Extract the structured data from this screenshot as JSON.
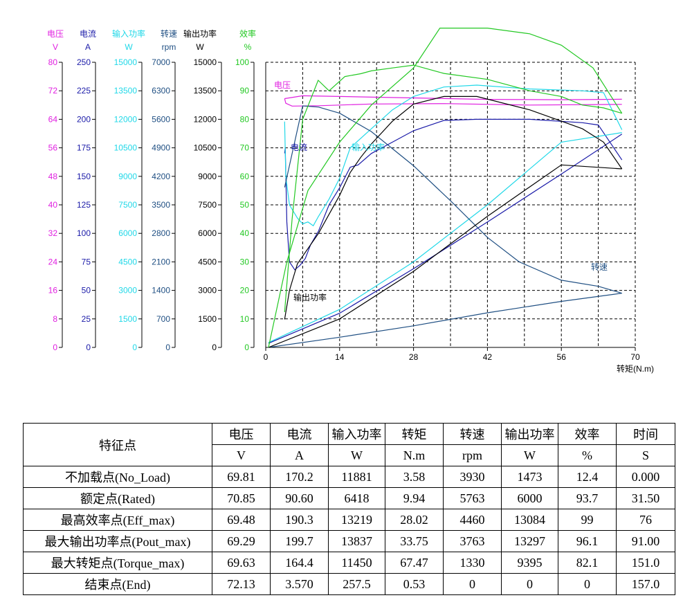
{
  "chart_data": {
    "type": "line",
    "xlabel": "转矩(N.m)",
    "xlim": [
      0,
      70
    ],
    "x_ticks": [
      "0",
      "14",
      "28",
      "42",
      "56",
      "70"
    ],
    "grid": true,
    "axes": [
      {
        "name": "电压",
        "unit": "V",
        "color": "#e020e0",
        "ylim": [
          0,
          80
        ],
        "ticks": [
          "0",
          "8",
          "16",
          "24",
          "32",
          "40",
          "48",
          "56",
          "64",
          "72",
          "80"
        ]
      },
      {
        "name": "电流",
        "unit": "A",
        "color": "#1a1aa8",
        "ylim": [
          0,
          250
        ],
        "ticks": [
          "0",
          "25",
          "50",
          "75",
          "100",
          "125",
          "150",
          "175",
          "200",
          "225",
          "250"
        ]
      },
      {
        "name": "输入功率",
        "unit": "W",
        "color": "#20d8e8",
        "ylim": [
          0,
          15000
        ],
        "ticks": [
          "0",
          "1500",
          "3000",
          "4500",
          "6000",
          "7500",
          "9000",
          "10500",
          "12000",
          "13500",
          "15000"
        ]
      },
      {
        "name": "转速",
        "unit": "rpm",
        "color": "#1e4e82",
        "ylim": [
          0,
          7000
        ],
        "ticks": [
          "0",
          "700",
          "1400",
          "2100",
          "2800",
          "3500",
          "4200",
          "4900",
          "5600",
          "6300",
          "7000"
        ]
      },
      {
        "name": "输出功率",
        "unit": "W",
        "color": "#000000",
        "ylim": [
          0,
          15000
        ],
        "ticks": [
          "0",
          "1500",
          "3000",
          "4500",
          "6000",
          "7500",
          "9000",
          "10500",
          "12000",
          "13500",
          "15000"
        ]
      },
      {
        "name": "效率",
        "unit": "%",
        "color": "#22c822",
        "ylim": [
          0,
          100
        ],
        "ticks": [
          "0",
          "10",
          "20",
          "30",
          "40",
          "50",
          "60",
          "70",
          "80",
          "90",
          "100"
        ]
      }
    ],
    "annotations": [
      "电压",
      "电流",
      "输入功率",
      "转速",
      "输出功率"
    ],
    "series": [
      {
        "name": "电压",
        "axis": 0,
        "color": "#e020e0",
        "x": [
          3.58,
          7,
          14,
          28,
          42,
          56,
          67.47
        ],
        "y": [
          69.81,
          70.6,
          70.4,
          70.0,
          69.6,
          69.5,
          69.63
        ]
      },
      {
        "name": "电压",
        "axis": 0,
        "color": "#e020e0",
        "x": [
          3.58,
          3.8,
          5,
          10,
          20,
          33.75,
          50,
          67.47
        ],
        "y": [
          69.81,
          68.5,
          67.7,
          67.8,
          68.3,
          68.4,
          68.0,
          68.2
        ]
      },
      {
        "name": "电流",
        "axis": 1,
        "color": "#1a1aa8",
        "x": [
          3.58,
          3.7,
          4.0,
          4.5,
          5.5,
          6.5,
          7.5,
          8.5,
          10,
          12,
          14,
          16,
          17.5,
          20,
          24,
          28,
          33.75,
          40,
          50,
          60,
          63,
          67.47
        ],
        "y": [
          170.2,
          175,
          110,
          75,
          68,
          72,
          78,
          90,
          102,
          125,
          140,
          158,
          160,
          170,
          180,
          190,
          199,
          200,
          200,
          197,
          195,
          164.4
        ]
      },
      {
        "name": "电流",
        "axis": 1,
        "color": "#1a1aa8",
        "x": [
          0.53,
          14,
          28,
          42,
          56,
          67.47
        ],
        "y": [
          3.57,
          30,
          69,
          110,
          152,
          187
        ]
      },
      {
        "name": "输入功率",
        "axis": 2,
        "color": "#20d8e8",
        "x": [
          3.58,
          3.8,
          4.5,
          6,
          7,
          8,
          9,
          10,
          12,
          14,
          16,
          20,
          24,
          28,
          33.75,
          40,
          50,
          60,
          64,
          67.47
        ],
        "y": [
          11881,
          9000,
          7500,
          6800,
          6500,
          6600,
          6400,
          6900,
          7800,
          8900,
          10500,
          11500,
          12500,
          13200,
          13700,
          13800,
          13600,
          13500,
          13400,
          11450
        ]
      },
      {
        "name": "输入功率",
        "axis": 2,
        "color": "#20d8e8",
        "x": [
          0.53,
          14,
          28,
          42,
          56,
          67.47
        ],
        "y": [
          257,
          2000,
          4500,
          7500,
          10800,
          11300
        ]
      },
      {
        "name": "转速",
        "axis": 3,
        "color": "#1e4e82",
        "x": [
          3.58,
          7,
          10,
          14,
          20,
          28,
          35,
          42,
          48,
          56,
          63,
          67.47
        ],
        "y": [
          3930,
          5930,
          5900,
          5750,
          5300,
          4460,
          3600,
          2700,
          2100,
          1650,
          1500,
          1330
        ]
      },
      {
        "name": "转速",
        "axis": 3,
        "color": "#1e4e82",
        "x": [
          0.53,
          14,
          28,
          42,
          56,
          67.47
        ],
        "y": [
          0,
          250,
          530,
          850,
          1130,
          1330
        ]
      },
      {
        "name": "输出功率",
        "axis": 4,
        "color": "#000000",
        "x": [
          3.58,
          4.5,
          6,
          8,
          10,
          12,
          14,
          16,
          18,
          20,
          24,
          28,
          33.75,
          40,
          50,
          56,
          60,
          64,
          67.47
        ],
        "y": [
          1473,
          3000,
          4400,
          5200,
          6000,
          7000,
          8000,
          9200,
          10000,
          10700,
          11900,
          12800,
          13200,
          13200,
          12500,
          11900,
          11500,
          10800,
          9395
        ]
      },
      {
        "name": "输出功率",
        "axis": 4,
        "color": "#000000",
        "x": [
          0.53,
          14,
          28,
          42,
          56,
          67.47
        ],
        "y": [
          0,
          1500,
          4000,
          6900,
          9600,
          9395
        ]
      },
      {
        "name": "效率",
        "axis": 5,
        "color": "#22c822",
        "x": [
          3.58,
          5,
          7,
          9.94,
          12,
          15,
          18,
          20,
          24,
          28.02,
          33.75,
          42,
          50,
          56,
          60,
          64,
          67.47
        ],
        "y": [
          12.4,
          45,
          80,
          93.7,
          90,
          95,
          96,
          97,
          98,
          99,
          96.1,
          94,
          90,
          88,
          85,
          84,
          82.1
        ]
      },
      {
        "name": "效率",
        "axis": 5,
        "color": "#22c822",
        "x": [
          0.53,
          4,
          8,
          14,
          20,
          28,
          33,
          42,
          50,
          56,
          62,
          67.47
        ],
        "y": [
          0,
          30,
          55,
          72,
          85,
          98,
          112,
          112,
          110,
          106,
          98,
          82.1
        ]
      }
    ]
  },
  "table": {
    "header_top": [
      "特征点",
      "电压",
      "电流",
      "输入功率",
      "转矩",
      "转速",
      "输出功率",
      "效率",
      "时间"
    ],
    "header_units": [
      "V",
      "A",
      "W",
      "N.m",
      "rpm",
      "W",
      "%",
      "S"
    ],
    "rows": [
      [
        "不加载点(No_Load)",
        "69.81",
        "170.2",
        "11881",
        "3.58",
        "3930",
        "1473",
        "12.4",
        "0.000"
      ],
      [
        "额定点(Rated)",
        "70.85",
        "90.60",
        "6418",
        "9.94",
        "5763",
        "6000",
        "93.7",
        "31.50"
      ],
      [
        "最高效率点(Eff_max)",
        "69.48",
        "190.3",
        "13219",
        "28.02",
        "4460",
        "13084",
        "99",
        "76"
      ],
      [
        "最大输出功率点(Pout_max)",
        "69.29",
        "199.7",
        "13837",
        "33.75",
        "3763",
        "13297",
        "96.1",
        "91.00"
      ],
      [
        "最大转矩点(Torque_max)",
        "69.63",
        "164.4",
        "11450",
        "67.47",
        "1330",
        "9395",
        "82.1",
        "151.0"
      ],
      [
        "结束点(End)",
        "72.13",
        "3.570",
        "257.5",
        "0.53",
        "0",
        "0",
        "0",
        "157.0"
      ]
    ]
  }
}
